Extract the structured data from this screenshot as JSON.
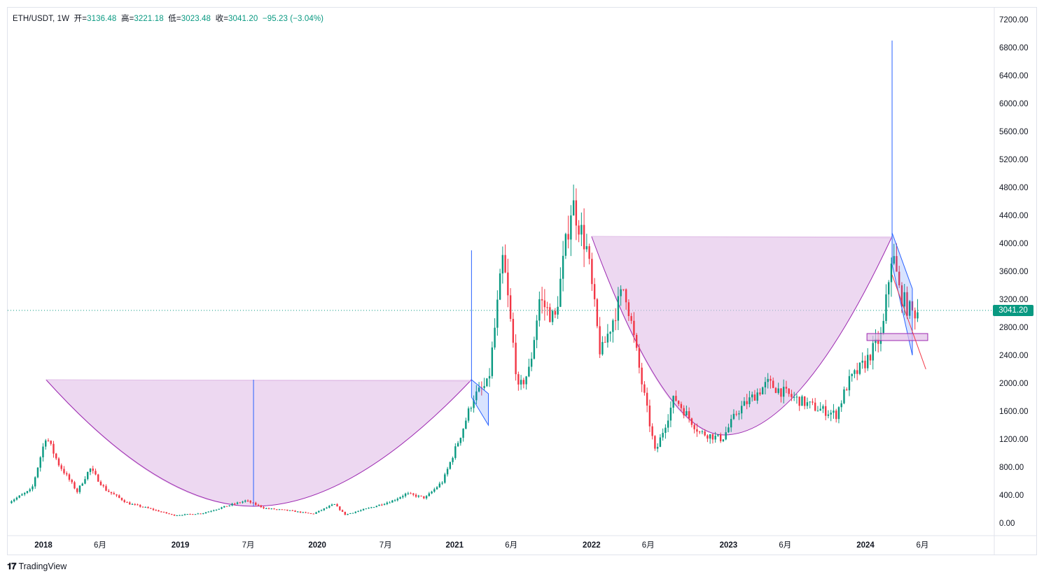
{
  "legend": {
    "symbol": "ETH/USDT, 1W",
    "open_label": "开",
    "open": "3136.48",
    "high_label": "高",
    "high": "3221.18",
    "low_label": "低",
    "low": "3023.48",
    "close_label": "收",
    "close": "3041.20",
    "change": "−95.23 (−3.04%)"
  },
  "price_tag": "3041.20",
  "brand": "TradingView",
  "colors": {
    "up": "#089981",
    "down": "#f23645",
    "fill": "#e1bee7",
    "cup_line": "#9c27b0",
    "channel": "#2962ff",
    "dotted": "#089981"
  },
  "chart_data": {
    "type": "candlestick",
    "symbol": "ETH/USDT",
    "interval": "1W",
    "y_axis": {
      "ticks": [
        "7200.00",
        "6800.00",
        "6400.00",
        "6000.00",
        "5600.00",
        "5200.00",
        "4800.00",
        "4400.00",
        "4000.00",
        "3600.00",
        "3200.00",
        "2800.00",
        "2400.00",
        "2000.00",
        "1600.00",
        "1200.00",
        "800.00",
        "400.00",
        "0.00"
      ],
      "min": 0,
      "max": 7200
    },
    "x_axis": {
      "ticks": [
        {
          "label": "2018",
          "major": true,
          "date": "2018-01-01"
        },
        {
          "label": "6月",
          "major": false,
          "date": "2018-06-01"
        },
        {
          "label": "2019",
          "major": true,
          "date": "2019-01-01"
        },
        {
          "label": "7月",
          "major": false,
          "date": "2019-07-01"
        },
        {
          "label": "2020",
          "major": true,
          "date": "2020-01-01"
        },
        {
          "label": "7月",
          "major": false,
          "date": "2020-07-01"
        },
        {
          "label": "2021",
          "major": true,
          "date": "2021-01-01"
        },
        {
          "label": "6月",
          "major": false,
          "date": "2021-06-01"
        },
        {
          "label": "2022",
          "major": true,
          "date": "2022-01-01"
        },
        {
          "label": "6月",
          "major": false,
          "date": "2022-06-01"
        },
        {
          "label": "2023",
          "major": true,
          "date": "2023-01-01"
        },
        {
          "label": "6月",
          "major": false,
          "date": "2023-06-01"
        },
        {
          "label": "2024",
          "major": true,
          "date": "2024-01-01"
        },
        {
          "label": "6月",
          "major": false,
          "date": "2024-06-01"
        }
      ]
    },
    "price_path": [
      [
        "2017-10-01",
        300
      ],
      [
        "2017-12-01",
        480
      ],
      [
        "2018-01-08",
        1250
      ],
      [
        "2018-02-10",
        850
      ],
      [
        "2018-04-01",
        450
      ],
      [
        "2018-05-05",
        780
      ],
      [
        "2018-06-15",
        480
      ],
      [
        "2018-08-15",
        280
      ],
      [
        "2018-10-01",
        220
      ],
      [
        "2018-12-15",
        110
      ],
      [
        "2019-03-01",
        140
      ],
      [
        "2019-05-15",
        260
      ],
      [
        "2019-06-25",
        320
      ],
      [
        "2019-08-15",
        210
      ],
      [
        "2019-10-15",
        180
      ],
      [
        "2019-12-20",
        130
      ],
      [
        "2020-02-15",
        270
      ],
      [
        "2020-03-15",
        120
      ],
      [
        "2020-05-15",
        210
      ],
      [
        "2020-07-20",
        320
      ],
      [
        "2020-08-25",
        420
      ],
      [
        "2020-10-15",
        360
      ],
      [
        "2020-12-01",
        600
      ],
      [
        "2021-01-20",
        1300
      ],
      [
        "2021-02-20",
        1800
      ],
      [
        "2021-04-01",
        2000
      ],
      [
        "2021-05-10",
        3800
      ],
      [
        "2021-06-20",
        1900
      ],
      [
        "2021-07-20",
        2200
      ],
      [
        "2021-08-15",
        3200
      ],
      [
        "2021-09-25",
        2900
      ],
      [
        "2021-11-10",
        4600
      ],
      [
        "2021-12-20",
        3900
      ],
      [
        "2022-01-25",
        2400
      ],
      [
        "2022-03-30",
        3400
      ],
      [
        "2022-05-15",
        2000
      ],
      [
        "2022-06-20",
        1000
      ],
      [
        "2022-08-10",
        1800
      ],
      [
        "2022-10-15",
        1300
      ],
      [
        "2022-12-15",
        1200
      ],
      [
        "2023-01-25",
        1600
      ],
      [
        "2023-04-15",
        2000
      ],
      [
        "2023-06-20",
        1800
      ],
      [
        "2023-08-20",
        1650
      ],
      [
        "2023-10-15",
        1550
      ],
      [
        "2023-11-15",
        2000
      ],
      [
        "2024-01-01",
        2300
      ],
      [
        "2024-02-15",
        2700
      ],
      [
        "2024-03-12",
        3900
      ],
      [
        "2024-04-01",
        3300
      ],
      [
        "2024-04-20",
        3100
      ],
      [
        "2024-05-05",
        3000
      ],
      [
        "2024-05-20",
        3041.2
      ]
    ],
    "last": {
      "open": 3136.48,
      "high": 3221.18,
      "low": 3023.48,
      "close": 3041.2,
      "change": -95.23,
      "change_pct": -3.04
    },
    "annotations": [
      {
        "type": "cup_fill",
        "from": "2018-01-08",
        "to": "2021-02-15",
        "rim_price": 2050,
        "bottom_date": "2019-07-15",
        "bottom_price": 240
      },
      {
        "type": "cup_fill",
        "from": "2022-01-01",
        "to": "2024-03-12",
        "rim_price": 4100,
        "bottom_date": "2022-12-20",
        "bottom_price": 1260
      },
      {
        "type": "vertical_line",
        "date": "2019-07-15",
        "from_price": 240,
        "to_price": 2050
      },
      {
        "type": "vertical_line",
        "date": "2021-02-15",
        "from_price": 2050,
        "to_price": 3900
      },
      {
        "type": "vertical_line",
        "date": "2024-03-12",
        "from_price": 4100,
        "to_price": 6900
      },
      {
        "type": "channel",
        "from": "2021-02-15",
        "to": "2021-04-01",
        "top": [
          2050,
          1850
        ],
        "bottom": [
          1800,
          1400
        ]
      },
      {
        "type": "channel",
        "from": "2024-03-12",
        "to": "2024-05-05",
        "top": [
          4150,
          3350
        ],
        "bottom": [
          3700,
          2400
        ]
      },
      {
        "type": "rectangle",
        "from": "2024-01-05",
        "to": "2024-06-15",
        "top": 2710,
        "bottom": 2610
      },
      {
        "type": "ray",
        "from": [
          "2024-03-12",
          3550
        ],
        "to": [
          "2024-06-10",
          2200
        ]
      }
    ]
  }
}
